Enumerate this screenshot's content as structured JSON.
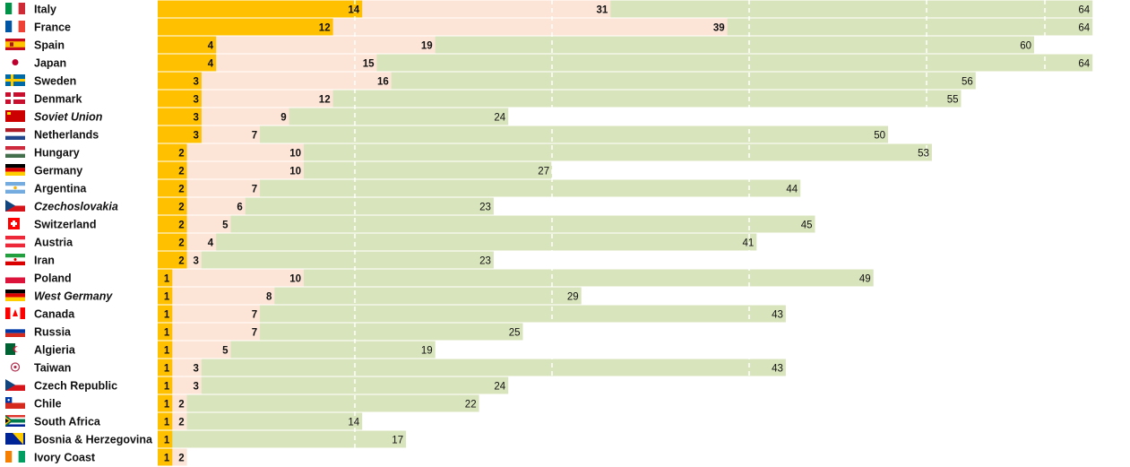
{
  "chart_data": {
    "type": "bar",
    "orientation": "horizontal",
    "stacking": "overlapping",
    "xlim": [
      0,
      64
    ],
    "grid": true,
    "colors": {
      "orange": "#FFC000",
      "peach": "#FCE4D6",
      "green": "#D8E4BC"
    },
    "series": [
      {
        "key": "orange"
      },
      {
        "key": "peach"
      },
      {
        "key": "green"
      }
    ],
    "rows": [
      {
        "country": "Italy",
        "flag": "italy-flag",
        "italic": false,
        "values": [
          14,
          31,
          64
        ]
      },
      {
        "country": "France",
        "flag": "france-flag",
        "italic": false,
        "values": [
          12,
          39,
          64
        ]
      },
      {
        "country": "Spain",
        "flag": "spain-flag",
        "italic": false,
        "values": [
          4,
          19,
          60
        ]
      },
      {
        "country": "Japan",
        "flag": "japan-flag",
        "italic": false,
        "values": [
          4,
          15,
          64
        ]
      },
      {
        "country": "Sweden",
        "flag": "sweden-flag",
        "italic": false,
        "values": [
          3,
          16,
          56
        ]
      },
      {
        "country": "Denmark",
        "flag": "denmark-flag",
        "italic": false,
        "values": [
          3,
          12,
          55
        ]
      },
      {
        "country": "Soviet Union",
        "flag": "soviet-union-flag",
        "italic": true,
        "values": [
          3,
          9,
          24
        ]
      },
      {
        "country": "Netherlands",
        "flag": "netherlands-flag",
        "italic": false,
        "values": [
          3,
          7,
          50
        ]
      },
      {
        "country": "Hungary",
        "flag": "hungary-flag",
        "italic": false,
        "values": [
          2,
          10,
          53
        ]
      },
      {
        "country": "Germany",
        "flag": "germany-flag",
        "italic": false,
        "values": [
          2,
          10,
          27
        ]
      },
      {
        "country": "Argentina",
        "flag": "argentina-flag",
        "italic": false,
        "values": [
          2,
          7,
          44
        ]
      },
      {
        "country": "Czechoslovakia",
        "flag": "czechoslovakia-flag",
        "italic": true,
        "values": [
          2,
          6,
          23
        ]
      },
      {
        "country": "Switzerland",
        "flag": "switzerland-flag",
        "italic": false,
        "values": [
          2,
          5,
          45
        ]
      },
      {
        "country": "Austria",
        "flag": "austria-flag",
        "italic": false,
        "values": [
          2,
          4,
          41
        ]
      },
      {
        "country": "Iran",
        "flag": "iran-flag",
        "italic": false,
        "values": [
          2,
          3,
          23
        ]
      },
      {
        "country": "Poland",
        "flag": "poland-flag",
        "italic": false,
        "values": [
          1,
          10,
          49
        ]
      },
      {
        "country": "West Germany",
        "flag": "west-germany-flag",
        "italic": true,
        "values": [
          1,
          8,
          29
        ]
      },
      {
        "country": "Canada",
        "flag": "canada-flag",
        "italic": false,
        "values": [
          1,
          7,
          43
        ]
      },
      {
        "country": "Russia",
        "flag": "russia-flag",
        "italic": false,
        "values": [
          1,
          7,
          25
        ]
      },
      {
        "country": "Algieria",
        "flag": "algeria-flag",
        "italic": false,
        "values": [
          1,
          5,
          19
        ]
      },
      {
        "country": "Taiwan",
        "flag": "taiwan-flag",
        "italic": false,
        "values": [
          1,
          3,
          43
        ]
      },
      {
        "country": "Czech Republic",
        "flag": "czech-republic-flag",
        "italic": false,
        "values": [
          1,
          3,
          24
        ]
      },
      {
        "country": "Chile",
        "flag": "chile-flag",
        "italic": false,
        "values": [
          1,
          2,
          22
        ]
      },
      {
        "country": "South Africa",
        "flag": "south-africa-flag",
        "italic": false,
        "values": [
          1,
          2,
          14
        ]
      },
      {
        "country": "Bosnia & Herzegovina",
        "flag": "bosnia-herzegovina-flag",
        "italic": false,
        "values": [
          1,
          null,
          17
        ]
      },
      {
        "country": "Ivory Coast",
        "flag": "ivory-coast-flag",
        "italic": false,
        "values": [
          1,
          2,
          null
        ]
      }
    ]
  }
}
